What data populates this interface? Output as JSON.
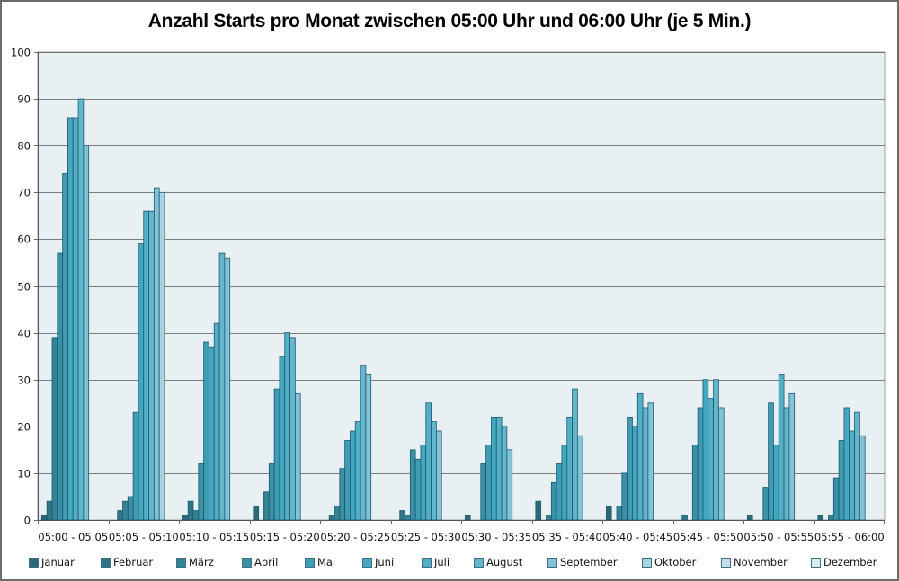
{
  "chart_data": {
    "type": "bar",
    "title": "Anzahl Starts pro Monat zwischen 05:00 Uhr und 06:00 Uhr (je 5 Min.)",
    "xlabel": "",
    "ylabel": "",
    "ylim": [
      0,
      100
    ],
    "yticks": [
      0,
      10,
      20,
      30,
      40,
      50,
      60,
      70,
      80,
      90,
      100
    ],
    "grid": true,
    "legend_position": "bottom",
    "categories": [
      "05:00 - 05:05",
      "05:05 - 05:10",
      "05:10 - 05:15",
      "05:15 - 05:20",
      "05:20 - 05:25",
      "05:25 - 05:30",
      "05:30 - 05:35",
      "05:35 - 05:40",
      "05:40 - 05:45",
      "05:45 - 05:50",
      "05:50 - 05:55",
      "05:55 - 06:00"
    ],
    "series": [
      {
        "name": "Januar",
        "color": "#2a6878",
        "values": [
          1,
          0,
          1,
          3,
          0,
          0,
          1,
          4,
          3,
          0,
          1,
          1
        ]
      },
      {
        "name": "Februar",
        "color": "#2f7588",
        "values": [
          4,
          2,
          4,
          0,
          1,
          2,
          0,
          0,
          0,
          1,
          0,
          0
        ]
      },
      {
        "name": "März",
        "color": "#358396",
        "values": [
          39,
          4,
          2,
          6,
          3,
          1,
          0,
          1,
          3,
          0,
          0,
          1
        ]
      },
      {
        "name": "April",
        "color": "#3a90a6",
        "values": [
          57,
          5,
          12,
          12,
          11,
          15,
          12,
          8,
          10,
          16,
          7,
          9
        ]
      },
      {
        "name": "Mai",
        "color": "#3f9cb4",
        "values": [
          74,
          23,
          38,
          28,
          17,
          13,
          16,
          12,
          22,
          24,
          25,
          17
        ]
      },
      {
        "name": "Juni",
        "color": "#45a6bf",
        "values": [
          86,
          59,
          37,
          35,
          19,
          16,
          22,
          16,
          20,
          30,
          16,
          24
        ]
      },
      {
        "name": "Juli",
        "color": "#52afc7",
        "values": [
          86,
          66,
          42,
          40,
          21,
          25,
          22,
          22,
          27,
          26,
          31,
          19
        ]
      },
      {
        "name": "August",
        "color": "#63b6cc",
        "values": [
          90,
          66,
          57,
          39,
          33,
          21,
          20,
          28,
          24,
          30,
          24,
          23
        ]
      },
      {
        "name": "September",
        "color": "#84c2d5",
        "values": [
          80,
          71,
          56,
          27,
          31,
          19,
          15,
          18,
          25,
          24,
          27,
          18
        ]
      },
      {
        "name": "Oktober",
        "color": "#a9d3e0",
        "values": [
          0,
          70,
          0,
          0,
          0,
          0,
          0,
          0,
          0,
          0,
          0,
          0
        ]
      },
      {
        "name": "November",
        "color": "#c5e0ea",
        "values": [
          0,
          0,
          0,
          0,
          0,
          0,
          0,
          0,
          0,
          0,
          0,
          0
        ]
      },
      {
        "name": "Dezember",
        "color": "#dbebf1",
        "values": [
          0,
          0,
          0,
          0,
          0,
          0,
          0,
          0,
          0,
          0,
          0,
          0
        ]
      }
    ]
  },
  "style": {
    "plot_background": "#e9f0f4",
    "gridline_color": "#555555",
    "bar_outline": "#1c5a6e"
  }
}
